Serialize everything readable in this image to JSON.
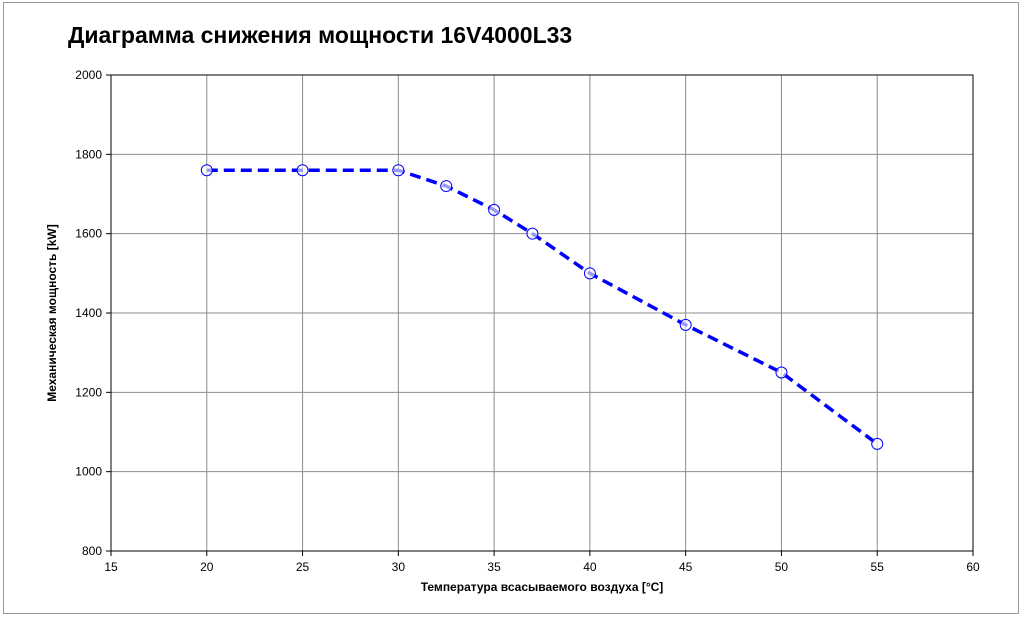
{
  "chart_data": {
    "type": "line",
    "title": "Диаграмма снижения мощности 16V4000L33",
    "xlabel": "Температура всасываемого воздуха [°C]",
    "ylabel": "Механическая мощность [kW]",
    "xlim": [
      15,
      60
    ],
    "ylim": [
      800,
      2000
    ],
    "x_ticks": [
      15,
      20,
      25,
      30,
      35,
      40,
      45,
      50,
      55,
      60
    ],
    "y_ticks": [
      800,
      1000,
      1200,
      1400,
      1600,
      1800,
      2000
    ],
    "grid": true,
    "legend": "none",
    "series": [
      {
        "color": "#0000ff",
        "line_style": "dashed",
        "marker": "open-circle",
        "x": [
          20,
          25,
          30,
          32.5,
          35,
          37,
          40,
          45,
          50,
          55
        ],
        "y": [
          1760,
          1760,
          1760,
          1720,
          1660,
          1600,
          1500,
          1370,
          1250,
          1070
        ]
      }
    ]
  }
}
